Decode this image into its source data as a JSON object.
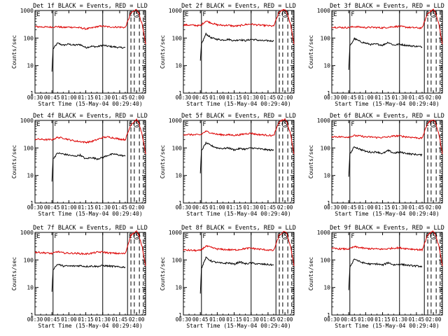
{
  "figure": {
    "start_time_label": "Start Time (15-May-04 00:29:40)",
    "ylabel": "Counts/sec",
    "x_ticks": [
      "00:30",
      "00:45",
      "01:00",
      "01:15",
      "01:30",
      "01:45",
      "02:00"
    ],
    "y_ticks": [
      "1",
      "10",
      "100",
      "1000"
    ],
    "marker_labels": {
      "E": "E",
      "S": "S",
      "F": "F"
    }
  },
  "chart_data": [
    {
      "type": "line",
      "title": "Det 1f BLACK = Events, RED = LLD",
      "xlabel": "Start Time (15-May-04 00:29:40)",
      "ylabel": "Counts/sec",
      "y_scale": "log",
      "ylim": [
        1,
        1000
      ],
      "x_range": [
        "00:30",
        "02:08"
      ],
      "series": [
        {
          "name": "Events",
          "color": "#000000",
          "x": [
            "00:45",
            "00:46",
            "00:50",
            "00:55",
            "01:00",
            "01:05",
            "01:10",
            "01:15",
            "01:20",
            "01:25",
            "01:30",
            "01:35",
            "01:40",
            "01:45",
            "01:50"
          ],
          "values": [
            6,
            40,
            65,
            55,
            60,
            55,
            58,
            45,
            50,
            48,
            55,
            50,
            48,
            45,
            45
          ]
        },
        {
          "name": "LLD",
          "color": "#dd0000",
          "x": [
            "00:30",
            "00:40",
            "00:45",
            "00:50",
            "00:55",
            "01:00",
            "01:05",
            "01:10",
            "01:15",
            "01:20",
            "01:25",
            "01:30",
            "01:35",
            "01:40",
            "01:45",
            "01:50",
            "01:55",
            "02:00",
            "02:02",
            "02:05",
            "02:08"
          ],
          "values": [
            260,
            250,
            250,
            260,
            240,
            250,
            245,
            235,
            215,
            230,
            260,
            270,
            255,
            250,
            250,
            240,
            800,
            1100,
            800,
            300,
            60
          ]
        }
      ]
    },
    {
      "type": "line",
      "title": "Det 2f BLACK = Events, RED = LLD",
      "xlabel": "Start Time (15-May-04 00:29:40)",
      "ylabel": "Counts/sec",
      "y_scale": "log",
      "ylim": [
        1,
        1000
      ],
      "x_range": [
        "00:30",
        "02:08"
      ],
      "series": [
        {
          "name": "Events",
          "color": "#000000",
          "x": [
            "00:45",
            "00:46",
            "00:50",
            "00:55",
            "01:00",
            "01:05",
            "01:10",
            "01:15",
            "01:20",
            "01:25",
            "01:30",
            "01:35",
            "01:40",
            "01:45",
            "01:50"
          ],
          "values": [
            15,
            60,
            140,
            100,
            90,
            85,
            90,
            80,
            88,
            80,
            90,
            85,
            80,
            80,
            78
          ]
        },
        {
          "name": "LLD",
          "color": "#dd0000",
          "x": [
            "00:30",
            "00:40",
            "00:45",
            "00:50",
            "00:55",
            "01:00",
            "01:05",
            "01:10",
            "01:15",
            "01:20",
            "01:25",
            "01:30",
            "01:35",
            "01:40",
            "01:45",
            "01:50",
            "01:55",
            "02:00",
            "02:02",
            "02:05",
            "02:08"
          ],
          "values": [
            300,
            290,
            280,
            420,
            350,
            300,
            290,
            290,
            270,
            280,
            310,
            320,
            300,
            290,
            280,
            270,
            900,
            1100,
            800,
            300,
            60
          ]
        }
      ]
    },
    {
      "type": "line",
      "title": "Det 3f BLACK = Events, RED = LLD",
      "xlabel": "Start Time (15-May-04 00:29:40)",
      "ylabel": "Counts/sec",
      "y_scale": "log",
      "ylim": [
        1,
        1000
      ],
      "x_range": [
        "00:30",
        "02:08"
      ],
      "series": [
        {
          "name": "Events",
          "color": "#000000",
          "x": [
            "00:45",
            "00:46",
            "00:50",
            "00:55",
            "01:00",
            "01:05",
            "01:10",
            "01:15",
            "01:20",
            "01:25",
            "01:30",
            "01:35",
            "01:40",
            "01:45",
            "01:50"
          ],
          "values": [
            7,
            50,
            95,
            75,
            65,
            58,
            60,
            55,
            70,
            55,
            60,
            55,
            52,
            50,
            48
          ]
        },
        {
          "name": "LLD",
          "color": "#dd0000",
          "x": [
            "00:30",
            "00:40",
            "00:45",
            "00:50",
            "00:55",
            "01:00",
            "01:05",
            "01:10",
            "01:15",
            "01:20",
            "01:25",
            "01:30",
            "01:35",
            "01:40",
            "01:45",
            "01:50",
            "01:55",
            "02:00",
            "02:02",
            "02:05",
            "02:08"
          ],
          "values": [
            250,
            240,
            240,
            260,
            250,
            240,
            245,
            240,
            235,
            245,
            260,
            265,
            250,
            240,
            235,
            230,
            800,
            1100,
            800,
            300,
            60
          ]
        }
      ]
    },
    {
      "type": "line",
      "title": "Det 4f BLACK = Events, RED = LLD",
      "xlabel": "Start Time (15-May-04 00:29:40)",
      "ylabel": "Counts/sec",
      "y_scale": "log",
      "ylim": [
        1,
        1000
      ],
      "x_range": [
        "00:30",
        "02:08"
      ],
      "series": [
        {
          "name": "Events",
          "color": "#000000",
          "x": [
            "00:45",
            "00:46",
            "00:50",
            "00:55",
            "01:00",
            "01:05",
            "01:10",
            "01:15",
            "01:20",
            "01:25",
            "01:30",
            "01:35",
            "01:40",
            "01:45",
            "01:50"
          ],
          "values": [
            6,
            40,
            65,
            60,
            55,
            50,
            55,
            40,
            45,
            40,
            45,
            55,
            60,
            55,
            50
          ]
        },
        {
          "name": "LLD",
          "color": "#dd0000",
          "x": [
            "00:30",
            "00:40",
            "00:45",
            "00:50",
            "00:55",
            "01:00",
            "01:05",
            "01:10",
            "01:15",
            "01:20",
            "01:25",
            "01:30",
            "01:35",
            "01:40",
            "01:45",
            "01:50",
            "01:55",
            "02:00",
            "02:02",
            "02:05",
            "02:08"
          ],
          "values": [
            210,
            200,
            200,
            240,
            230,
            200,
            180,
            170,
            160,
            170,
            200,
            240,
            250,
            230,
            210,
            200,
            700,
            1100,
            800,
            300,
            60
          ]
        }
      ]
    },
    {
      "type": "line",
      "title": "Det 5f BLACK = Events, RED = LLD",
      "xlabel": "Start Time (15-May-04 00:29:40)",
      "ylabel": "Counts/sec",
      "y_scale": "log",
      "ylim": [
        1,
        1000
      ],
      "x_range": [
        "00:30",
        "02:08"
      ],
      "series": [
        {
          "name": "Events",
          "color": "#000000",
          "x": [
            "00:45",
            "00:46",
            "00:50",
            "00:55",
            "01:00",
            "01:05",
            "01:10",
            "01:15",
            "01:20",
            "01:25",
            "01:30",
            "01:35",
            "01:40",
            "01:45",
            "01:50"
          ],
          "values": [
            12,
            80,
            150,
            120,
            100,
            95,
            100,
            85,
            95,
            90,
            100,
            95,
            90,
            85,
            82
          ]
        },
        {
          "name": "LLD",
          "color": "#dd0000",
          "x": [
            "00:30",
            "00:40",
            "00:45",
            "00:50",
            "00:55",
            "01:00",
            "01:05",
            "01:10",
            "01:15",
            "01:20",
            "01:25",
            "01:30",
            "01:35",
            "01:40",
            "01:45",
            "01:50",
            "01:55",
            "02:00",
            "02:02",
            "02:05",
            "02:08"
          ],
          "values": [
            310,
            300,
            300,
            400,
            350,
            310,
            300,
            300,
            290,
            300,
            330,
            340,
            310,
            300,
            290,
            280,
            900,
            1100,
            800,
            300,
            60
          ]
        }
      ]
    },
    {
      "type": "line",
      "title": "Det 6f BLACK = Events, RED = LLD",
      "xlabel": "Start Time (15-May-04 00:29:40)",
      "ylabel": "Counts/sec",
      "y_scale": "log",
      "ylim": [
        1,
        1000
      ],
      "x_range": [
        "00:30",
        "02:08"
      ],
      "series": [
        {
          "name": "Events",
          "color": "#000000",
          "x": [
            "00:45",
            "00:46",
            "00:50",
            "00:55",
            "01:00",
            "01:05",
            "01:10",
            "01:15",
            "01:20",
            "01:25",
            "01:30",
            "01:35",
            "01:40",
            "01:45",
            "01:50"
          ],
          "values": [
            9,
            60,
            110,
            90,
            75,
            70,
            72,
            62,
            80,
            65,
            70,
            65,
            60,
            58,
            55
          ]
        },
        {
          "name": "LLD",
          "color": "#dd0000",
          "x": [
            "00:30",
            "00:40",
            "00:45",
            "00:50",
            "00:55",
            "01:00",
            "01:05",
            "01:10",
            "01:15",
            "01:20",
            "01:25",
            "01:30",
            "01:35",
            "01:40",
            "01:45",
            "01:50",
            "01:55",
            "02:00",
            "02:02",
            "02:05",
            "02:08"
          ],
          "values": [
            260,
            250,
            250,
            280,
            270,
            250,
            250,
            240,
            240,
            250,
            270,
            275,
            255,
            245,
            235,
            225,
            800,
            1100,
            800,
            300,
            60
          ]
        }
      ]
    },
    {
      "type": "line",
      "title": "Det 7f BLACK = Events, RED = LLD",
      "xlabel": "Start Time (15-May-04 00:29:40)",
      "ylabel": "Counts/sec",
      "y_scale": "log",
      "ylim": [
        1,
        1000
      ],
      "x_range": [
        "00:30",
        "02:08"
      ],
      "series": [
        {
          "name": "Events",
          "color": "#000000",
          "x": [
            "00:45",
            "00:46",
            "00:50",
            "00:55",
            "01:00",
            "01:05",
            "01:10",
            "01:15",
            "01:20",
            "01:25",
            "01:30",
            "01:35",
            "01:40",
            "01:45",
            "01:50"
          ],
          "values": [
            7,
            45,
            70,
            60,
            60,
            60,
            62,
            58,
            60,
            58,
            62,
            60,
            58,
            55,
            55
          ]
        },
        {
          "name": "LLD",
          "color": "#dd0000",
          "x": [
            "00:30",
            "00:40",
            "00:45",
            "00:50",
            "00:55",
            "01:00",
            "01:05",
            "01:10",
            "01:15",
            "01:20",
            "01:25",
            "01:30",
            "01:35",
            "01:40",
            "01:45",
            "01:50",
            "01:55",
            "02:00",
            "02:02",
            "02:05",
            "02:08"
          ],
          "values": [
            190,
            180,
            170,
            200,
            180,
            175,
            175,
            170,
            165,
            175,
            190,
            195,
            180,
            175,
            170,
            170,
            800,
            1100,
            800,
            300,
            60
          ]
        }
      ]
    },
    {
      "type": "line",
      "title": "Det 8f BLACK = Events, RED = LLD",
      "xlabel": "Start Time (15-May-04 00:29:40)",
      "ylabel": "Counts/sec",
      "y_scale": "log",
      "ylim": [
        1,
        1000
      ],
      "x_range": [
        "00:30",
        "02:08"
      ],
      "series": [
        {
          "name": "Events",
          "color": "#000000",
          "x": [
            "00:45",
            "00:46",
            "00:50",
            "00:55",
            "01:00",
            "01:05",
            "01:10",
            "01:15",
            "01:20",
            "01:25",
            "01:30",
            "01:35",
            "01:40",
            "01:45",
            "01:50"
          ],
          "values": [
            6,
            50,
            120,
            90,
            80,
            75,
            78,
            70,
            85,
            72,
            78,
            72,
            70,
            68,
            65
          ]
        },
        {
          "name": "LLD",
          "color": "#dd0000",
          "x": [
            "00:30",
            "00:40",
            "00:45",
            "00:50",
            "00:55",
            "01:00",
            "01:05",
            "01:10",
            "01:15",
            "01:20",
            "01:25",
            "01:30",
            "01:35",
            "01:40",
            "01:45",
            "01:50",
            "01:55",
            "02:00",
            "02:02",
            "02:05",
            "02:08"
          ],
          "values": [
            230,
            220,
            220,
            320,
            280,
            250,
            240,
            235,
            230,
            240,
            260,
            270,
            250,
            240,
            230,
            220,
            800,
            1100,
            800,
            300,
            60
          ]
        }
      ]
    },
    {
      "type": "line",
      "title": "Det 9f BLACK = Events, RED = LLD",
      "xlabel": "Start Time (15-May-04 00:29:40)",
      "ylabel": "Counts/sec",
      "y_scale": "log",
      "ylim": [
        1,
        1000
      ],
      "x_range": [
        "00:30",
        "02:08"
      ],
      "series": [
        {
          "name": "Events",
          "color": "#000000",
          "x": [
            "00:45",
            "00:46",
            "00:50",
            "00:55",
            "01:00",
            "01:05",
            "01:10",
            "01:15",
            "01:20",
            "01:25",
            "01:30",
            "01:35",
            "01:40",
            "01:45",
            "01:50"
          ],
          "values": [
            8,
            55,
            110,
            85,
            75,
            70,
            72,
            65,
            80,
            66,
            70,
            66,
            62,
            60,
            58
          ]
        },
        {
          "name": "LLD",
          "color": "#dd0000",
          "x": [
            "00:30",
            "00:40",
            "00:45",
            "00:50",
            "00:55",
            "01:00",
            "01:05",
            "01:10",
            "01:15",
            "01:20",
            "01:25",
            "01:30",
            "01:35",
            "01:40",
            "01:45",
            "01:50",
            "01:55",
            "02:00",
            "02:02",
            "02:05",
            "02:08"
          ],
          "values": [
            260,
            250,
            250,
            300,
            280,
            260,
            255,
            250,
            245,
            255,
            270,
            275,
            260,
            250,
            240,
            230,
            800,
            1100,
            800,
            300,
            60
          ]
        }
      ]
    }
  ]
}
